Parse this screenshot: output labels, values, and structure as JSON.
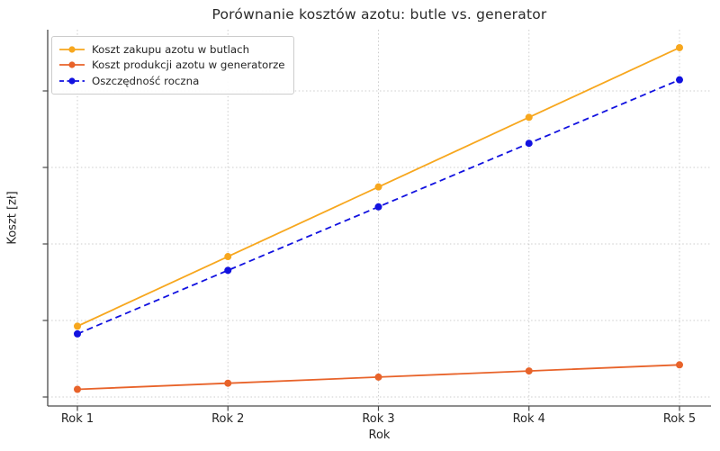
{
  "title": "Porównanie kosztów azotu: butle vs. generator",
  "chart_data": {
    "type": "line",
    "title": "Porównanie kosztów azotu: butle vs. generator",
    "xlabel": "Rok",
    "ylabel": "Koszt [zł]",
    "categories": [
      "Rok 1",
      "Rok 2",
      "Rok 3",
      "Rok 4",
      "Rok 5"
    ],
    "series": [
      {
        "name": "Koszt zakupu azotu w butlach",
        "color": "#f7a71e",
        "line_style": "solid",
        "marker": "circle",
        "values": [
          18500,
          36700,
          54900,
          73100,
          91300
        ]
      },
      {
        "name": "Koszt produkcji azotu w generatorze",
        "color": "#e8632a",
        "line_style": "solid",
        "marker": "circle",
        "values": [
          2000,
          3600,
          5200,
          6800,
          8400
        ]
      },
      {
        "name": "Oszczędność roczna",
        "color": "#1212e0",
        "line_style": "dashed",
        "marker": "circle",
        "values": [
          16500,
          33100,
          49700,
          66300,
          82900
        ]
      }
    ],
    "y_ticks": [
      0,
      20000,
      40000,
      60000,
      80000
    ],
    "y_tick_labels_visible": false,
    "ylim": [
      0,
      96000
    ],
    "grid": "dotted",
    "legend_position": "upper-left",
    "colors": {
      "grid": "#cccccc",
      "spine": "#4a4a4a",
      "text": "#262626"
    }
  }
}
